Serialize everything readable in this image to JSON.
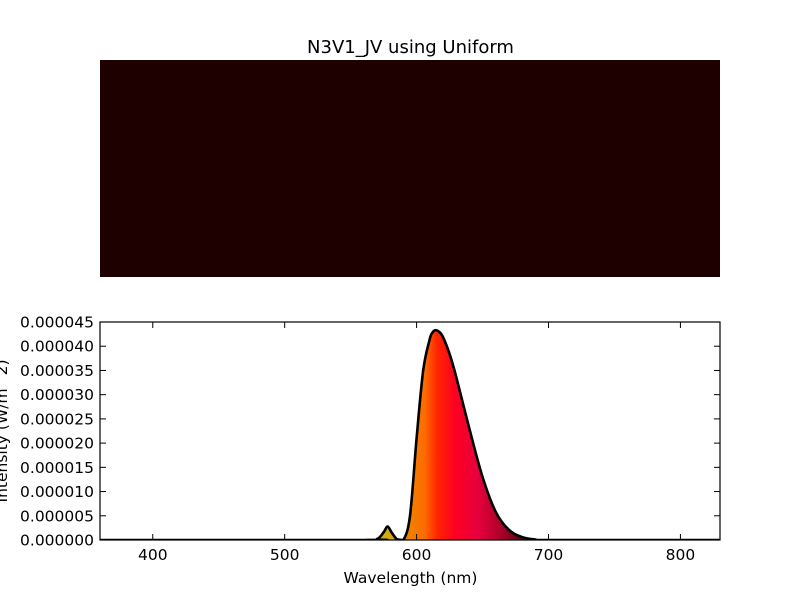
{
  "colors": {
    "swatch": "#1e0000",
    "axes": "#000000",
    "curve": "#000000",
    "background": "#ffffff"
  },
  "chart_data": [
    {
      "type": "heatmap",
      "title": "N3V1_JV using Uniform",
      "fill_color": "#1e0000"
    },
    {
      "type": "area",
      "title": "",
      "xlabel": "Wavelength (nm)",
      "ylabel": "Intensity (W/m^2)",
      "xlim": [
        360,
        830
      ],
      "ylim": [
        0,
        4.5e-05
      ],
      "xticks": [
        400,
        500,
        600,
        700,
        800
      ],
      "xtick_labels": [
        "400",
        "500",
        "600",
        "700",
        "800"
      ],
      "yticks": [
        0,
        5e-06,
        1e-05,
        1.5e-05,
        2e-05,
        2.5e-05,
        3e-05,
        3.5e-05,
        4e-05,
        4.5e-05
      ],
      "ytick_labels": [
        "0.000000",
        "0.000005",
        "0.000010",
        "0.000015",
        "0.000020",
        "0.000025",
        "0.000030",
        "0.000035",
        "0.000040",
        "0.000045"
      ],
      "grid": false,
      "series": [
        {
          "x": [
            360,
            560,
            570,
            575,
            578,
            581,
            585,
            590,
            595,
            600,
            605,
            610,
            612,
            614,
            617,
            620,
            625,
            630,
            640,
            650,
            660,
            670,
            680,
            690,
            700,
            830
          ],
          "y": [
            0,
            0,
            2e-07,
            1.6e-06,
            2.8e-06,
            1.6e-06,
            2e-07,
            0,
            5e-06,
            2.1e-05,
            3.5e-05,
            4.15e-05,
            4.28e-05,
            4.33e-05,
            4.3e-05,
            4.19e-05,
            3.84e-05,
            3.37e-05,
            2.3e-05,
            1.3e-05,
            5.8e-06,
            2.1e-06,
            6e-07,
            1e-07,
            0,
            0
          ]
        }
      ]
    }
  ]
}
